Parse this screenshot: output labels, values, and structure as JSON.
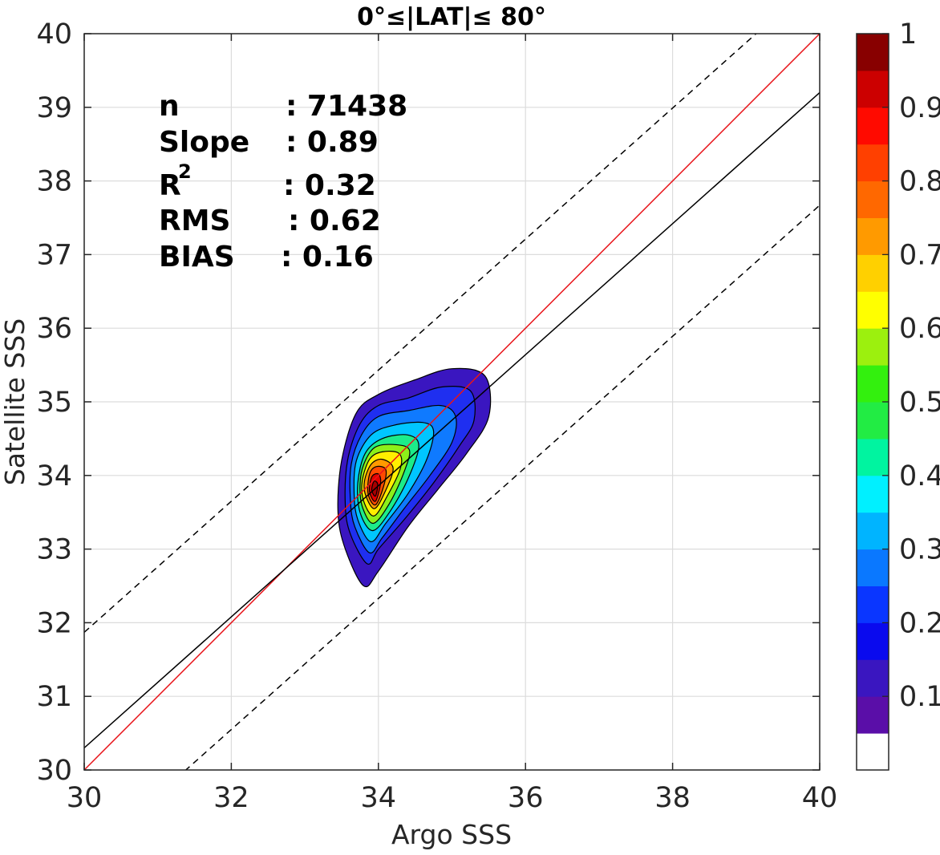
{
  "chart_data": {
    "type": "contour",
    "title": "0°≤|LAT|≤ 80°",
    "xlabel": "Argo SSS",
    "ylabel": "Satellite SSS",
    "xlim": [
      30,
      40
    ],
    "ylim": [
      30,
      40
    ],
    "xticks": [
      "30",
      "32",
      "34",
      "36",
      "38",
      "40"
    ],
    "yticks": [
      "30",
      "31",
      "32",
      "33",
      "34",
      "35",
      "36",
      "37",
      "38",
      "39",
      "40"
    ],
    "grid": true,
    "stats": {
      "n_label": "n",
      "n_value": ": 71438",
      "slope_label": "Slope",
      "slope_value": ": 0.89",
      "r2_label": "R",
      "r2_sup": "2",
      "r2_value": ": 0.32",
      "rms_label": "RMS",
      "rms_value": ": 0.62",
      "bias_label": "BIAS",
      "bias_value": ": 0.16"
    },
    "lines": [
      {
        "kind": "one-to-one",
        "color": "#e8141a",
        "style": "solid",
        "slope": 1.0,
        "intercept": 0.0
      },
      {
        "kind": "regression",
        "color": "#000000",
        "style": "solid",
        "slope": 0.89,
        "intercept": 3.6
      },
      {
        "kind": "upper-bound",
        "color": "#000000",
        "style": "dashed",
        "slope": 0.89,
        "intercept": 5.17
      },
      {
        "kind": "lower-bound",
        "color": "#000000",
        "style": "dashed",
        "slope": 0.89,
        "intercept": 2.07
      }
    ],
    "density_center": {
      "x": 33.95,
      "y": 33.85
    },
    "contour_levels": [
      {
        "level": 0.05,
        "color": "#3a16c0",
        "points": [
          [
            33.55,
            33.0
          ],
          [
            33.8,
            32.5
          ],
          [
            34.0,
            32.7
          ],
          [
            34.4,
            33.3
          ],
          [
            34.8,
            33.8
          ],
          [
            35.2,
            34.3
          ],
          [
            35.5,
            34.8
          ],
          [
            35.45,
            35.35
          ],
          [
            35.0,
            35.45
          ],
          [
            34.5,
            35.3
          ],
          [
            34.0,
            35.1
          ],
          [
            33.7,
            34.85
          ],
          [
            33.5,
            34.2
          ],
          [
            33.45,
            33.5
          ]
        ]
      },
      {
        "level": 0.15,
        "color": "#1f2ff0",
        "points": [
          [
            33.62,
            33.2
          ],
          [
            33.85,
            32.8
          ],
          [
            34.0,
            33.0
          ],
          [
            34.35,
            33.4
          ],
          [
            34.75,
            33.9
          ],
          [
            35.1,
            34.4
          ],
          [
            35.3,
            34.75
          ],
          [
            35.25,
            35.15
          ],
          [
            34.85,
            35.2
          ],
          [
            34.4,
            35.05
          ],
          [
            34.0,
            34.95
          ],
          [
            33.75,
            34.7
          ],
          [
            33.58,
            34.2
          ],
          [
            33.55,
            33.6
          ]
        ]
      },
      {
        "level": 0.25,
        "color": "#0f7aff",
        "points": [
          [
            33.68,
            33.3
          ],
          [
            33.88,
            32.95
          ],
          [
            34.05,
            33.15
          ],
          [
            34.35,
            33.55
          ],
          [
            34.7,
            34.0
          ],
          [
            35.0,
            34.45
          ],
          [
            35.05,
            34.8
          ],
          [
            34.85,
            34.95
          ],
          [
            34.4,
            34.88
          ],
          [
            34.0,
            34.8
          ],
          [
            33.77,
            34.55
          ],
          [
            33.63,
            34.15
          ],
          [
            33.62,
            33.65
          ]
        ]
      },
      {
        "level": 0.35,
        "color": "#00c6ff",
        "points": [
          [
            33.72,
            33.4
          ],
          [
            33.9,
            33.1
          ],
          [
            34.1,
            33.35
          ],
          [
            34.4,
            33.75
          ],
          [
            34.65,
            34.2
          ],
          [
            34.75,
            34.6
          ],
          [
            34.6,
            34.72
          ],
          [
            34.2,
            34.68
          ],
          [
            33.9,
            34.55
          ],
          [
            33.7,
            34.2
          ],
          [
            33.67,
            33.75
          ]
        ]
      },
      {
        "level": 0.45,
        "color": "#1cec8a",
        "points": [
          [
            33.75,
            33.5
          ],
          [
            33.92,
            33.25
          ],
          [
            34.15,
            33.5
          ],
          [
            34.4,
            33.95
          ],
          [
            34.55,
            34.4
          ],
          [
            34.4,
            34.55
          ],
          [
            34.05,
            34.5
          ],
          [
            33.82,
            34.3
          ],
          [
            33.72,
            33.9
          ]
        ]
      },
      {
        "level": 0.55,
        "color": "#8cf01a",
        "points": [
          [
            33.78,
            33.58
          ],
          [
            33.93,
            33.35
          ],
          [
            34.15,
            33.62
          ],
          [
            34.35,
            34.05
          ],
          [
            34.42,
            34.35
          ],
          [
            34.2,
            34.42
          ],
          [
            33.95,
            34.38
          ],
          [
            33.8,
            34.15
          ],
          [
            33.75,
            33.88
          ]
        ]
      },
      {
        "level": 0.65,
        "color": "#ffee00",
        "points": [
          [
            33.8,
            33.65
          ],
          [
            33.94,
            33.45
          ],
          [
            34.12,
            33.72
          ],
          [
            34.3,
            34.1
          ],
          [
            34.28,
            34.3
          ],
          [
            34.05,
            34.32
          ],
          [
            33.88,
            34.22
          ],
          [
            33.78,
            33.92
          ]
        ]
      },
      {
        "level": 0.75,
        "color": "#ff9a00",
        "points": [
          [
            33.83,
            33.72
          ],
          [
            33.95,
            33.55
          ],
          [
            34.1,
            33.8
          ],
          [
            34.2,
            34.1
          ],
          [
            34.05,
            34.22
          ],
          [
            33.9,
            34.15
          ],
          [
            33.81,
            33.92
          ]
        ]
      },
      {
        "level": 0.85,
        "color": "#ff4a00",
        "points": [
          [
            33.86,
            33.75
          ],
          [
            33.96,
            33.6
          ],
          [
            34.07,
            33.85
          ],
          [
            34.1,
            34.08
          ],
          [
            33.97,
            34.12
          ],
          [
            33.88,
            34.02
          ]
        ]
      },
      {
        "level": 0.95,
        "color": "#e30000",
        "points": [
          [
            33.88,
            33.78
          ],
          [
            33.96,
            33.65
          ],
          [
            34.03,
            33.9
          ],
          [
            34.0,
            34.02
          ],
          [
            33.91,
            33.98
          ]
        ]
      },
      {
        "level": 1.0,
        "color": "#a80000",
        "points": [
          [
            33.91,
            33.8
          ],
          [
            33.96,
            33.72
          ],
          [
            33.99,
            33.88
          ],
          [
            33.94,
            33.92
          ]
        ]
      }
    ],
    "colorbar": {
      "ticks": [
        "1",
        "0.9",
        "0.8",
        "0.7",
        "0.6",
        "0.5",
        "0.4",
        "0.3",
        "0.2",
        "0.1"
      ],
      "colors": [
        "#ffffff",
        "#5a0ea8",
        "#3a16c0",
        "#0a0aee",
        "#0a36ff",
        "#0a78ff",
        "#00b4ff",
        "#00f0ff",
        "#00f4a0",
        "#22ec44",
        "#33f00e",
        "#9cf00e",
        "#ffff00",
        "#ffd000",
        "#ff9a00",
        "#ff6800",
        "#ff4000",
        "#ff0a00",
        "#cc0000",
        "#880000"
      ]
    }
  }
}
